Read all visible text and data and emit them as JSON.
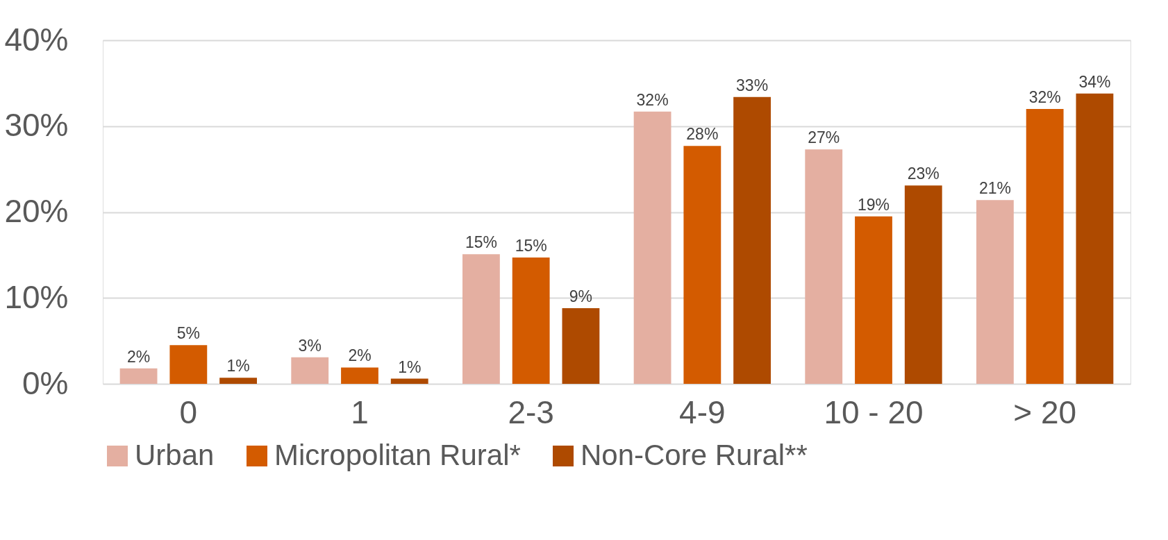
{
  "chart_data": {
    "type": "bar",
    "categories": [
      "0",
      "1",
      "2-3",
      "4-9",
      "10 - 20",
      "> 20"
    ],
    "series": [
      {
        "name": "Urban",
        "color": "#e4afa1",
        "values": [
          1.8,
          3.1,
          15.1,
          31.7,
          27.3,
          21.4
        ],
        "value_labels": [
          "2%",
          "3%",
          "15%",
          "32%",
          "27%",
          "21%"
        ]
      },
      {
        "name": "Micropolitan Rural*",
        "color": "#d35b00",
        "values": [
          4.5,
          1.9,
          14.7,
          27.7,
          19.5,
          32.0
        ],
        "value_labels": [
          "5%",
          "2%",
          "15%",
          "28%",
          "19%",
          "32%"
        ]
      },
      {
        "name": "Non-Core Rural**",
        "color": "#ae4a00",
        "values": [
          0.7,
          0.6,
          8.8,
          33.4,
          23.1,
          33.8
        ],
        "value_labels": [
          "1%",
          "1%",
          "9%",
          "33%",
          "23%",
          "34%"
        ]
      }
    ],
    "ylim": [
      0,
      40
    ],
    "yticks": [
      {
        "value": 0,
        "label": "0%"
      },
      {
        "value": 10,
        "label": "10%"
      },
      {
        "value": 20,
        "label": "20%"
      },
      {
        "value": 30,
        "label": "30%"
      },
      {
        "value": 40,
        "label": "40%"
      }
    ],
    "grid": "y",
    "legend": "bottom"
  }
}
